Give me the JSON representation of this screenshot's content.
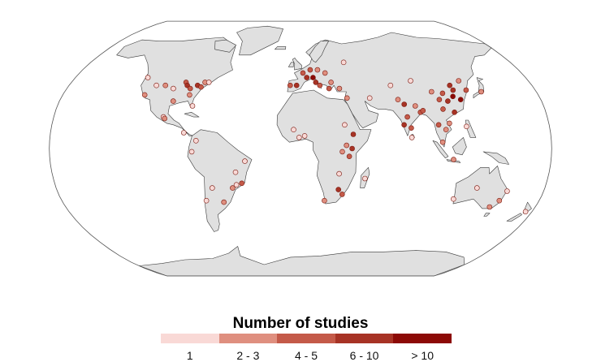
{
  "legend": {
    "title": "Number of studies",
    "bins": [
      {
        "label": "1",
        "color": "#f9d9d6"
      },
      {
        "label": "2 - 3",
        "color": "#df8f7f"
      },
      {
        "label": "4 - 5",
        "color": "#c45a49"
      },
      {
        "label": "6 - 10",
        "color": "#a73325"
      },
      {
        "label": "> 10",
        "color": "#8c0a06"
      }
    ]
  },
  "map": {
    "projection": "robinson",
    "land_color": "#e0e0e0",
    "border_color": "#3a3a3a",
    "ocean_color": "#ffffff"
  },
  "study_sites": [
    {
      "lon": -122,
      "lat": 45,
      "bin": 1
    },
    {
      "lon": -118,
      "lat": 34,
      "bin": 2
    },
    {
      "lon": -112,
      "lat": 40,
      "bin": 1
    },
    {
      "lon": -105,
      "lat": 40,
      "bin": 2
    },
    {
      "lon": -98,
      "lat": 38,
      "bin": 1
    },
    {
      "lon": -95,
      "lat": 30,
      "bin": 2
    },
    {
      "lon": -90,
      "lat": 42,
      "bin": 3
    },
    {
      "lon": -88,
      "lat": 40,
      "bin": 4
    },
    {
      "lon": -85,
      "lat": 38,
      "bin": 3
    },
    {
      "lon": -84,
      "lat": 34,
      "bin": 2
    },
    {
      "lon": -80,
      "lat": 40,
      "bin": 4
    },
    {
      "lon": -77,
      "lat": 39,
      "bin": 3
    },
    {
      "lon": -75,
      "lat": 42,
      "bin": 2
    },
    {
      "lon": -72,
      "lat": 42,
      "bin": 1
    },
    {
      "lon": -80,
      "lat": 27,
      "bin": 1
    },
    {
      "lon": -100,
      "lat": 20,
      "bin": 1
    },
    {
      "lon": -99,
      "lat": 19,
      "bin": 2
    },
    {
      "lon": -84,
      "lat": 10,
      "bin": 1
    },
    {
      "lon": -75,
      "lat": 5,
      "bin": 1
    },
    {
      "lon": -78,
      "lat": -2,
      "bin": 1
    },
    {
      "lon": -47,
      "lat": -15,
      "bin": 1
    },
    {
      "lon": -43,
      "lat": -22,
      "bin": 3
    },
    {
      "lon": -50,
      "lat": -25,
      "bin": 2
    },
    {
      "lon": -47,
      "lat": -23,
      "bin": 1
    },
    {
      "lon": -58,
      "lat": -34,
      "bin": 2
    },
    {
      "lon": -65,
      "lat": -25,
      "bin": 1
    },
    {
      "lon": -71,
      "lat": -33,
      "bin": 1
    },
    {
      "lon": -40,
      "lat": -8,
      "bin": 1
    },
    {
      "lon": -3,
      "lat": 40,
      "bin": 4
    },
    {
      "lon": 2,
      "lat": 48,
      "bin": 3
    },
    {
      "lon": 5,
      "lat": 45,
      "bin": 4
    },
    {
      "lon": 10,
      "lat": 45,
      "bin": 5
    },
    {
      "lon": 12,
      "lat": 42,
      "bin": 4
    },
    {
      "lon": 15,
      "lat": 40,
      "bin": 3
    },
    {
      "lon": 8,
      "lat": 50,
      "bin": 3
    },
    {
      "lon": 14,
      "lat": 50,
      "bin": 2
    },
    {
      "lon": 20,
      "lat": 48,
      "bin": 2
    },
    {
      "lon": 24,
      "lat": 42,
      "bin": 2
    },
    {
      "lon": 22,
      "lat": 38,
      "bin": 3
    },
    {
      "lon": -8,
      "lat": 40,
      "bin": 3
    },
    {
      "lon": 30,
      "lat": 38,
      "bin": 2
    },
    {
      "lon": 35,
      "lat": 32,
      "bin": 2
    },
    {
      "lon": 37,
      "lat": 55,
      "bin": 1
    },
    {
      "lon": 52,
      "lat": 32,
      "bin": 1
    },
    {
      "lon": 32,
      "lat": 15,
      "bin": 1
    },
    {
      "lon": 38,
      "lat": 9,
      "bin": 4
    },
    {
      "lon": 37,
      "lat": 0,
      "bin": 4
    },
    {
      "lon": 35,
      "lat": -5,
      "bin": 3
    },
    {
      "lon": 33,
      "lat": 2,
      "bin": 2
    },
    {
      "lon": 30,
      "lat": -2,
      "bin": 2
    },
    {
      "lon": 3,
      "lat": 8,
      "bin": 1
    },
    {
      "lon": -5,
      "lat": 12,
      "bin": 1
    },
    {
      "lon": -1,
      "lat": 7,
      "bin": 1
    },
    {
      "lon": 28,
      "lat": -26,
      "bin": 4
    },
    {
      "lon": 31,
      "lat": -29,
      "bin": 3
    },
    {
      "lon": 18,
      "lat": -33,
      "bin": 2
    },
    {
      "lon": 47,
      "lat": -19,
      "bin": 1
    },
    {
      "lon": 28,
      "lat": -16,
      "bin": 1
    },
    {
      "lon": 77,
      "lat": 28,
      "bin": 4
    },
    {
      "lon": 78,
      "lat": 20,
      "bin": 3
    },
    {
      "lon": 75,
      "lat": 15,
      "bin": 4
    },
    {
      "lon": 80,
      "lat": 13,
      "bin": 3
    },
    {
      "lon": 73,
      "lat": 31,
      "bin": 2
    },
    {
      "lon": 88,
      "lat": 23,
      "bin": 3
    },
    {
      "lon": 85,
      "lat": 27,
      "bin": 2
    },
    {
      "lon": 90,
      "lat": 24,
      "bin": 3
    },
    {
      "lon": 80,
      "lat": 7,
      "bin": 1
    },
    {
      "lon": 100,
      "lat": 15,
      "bin": 3
    },
    {
      "lon": 105,
      "lat": 12,
      "bin": 2
    },
    {
      "lon": 108,
      "lat": 16,
      "bin": 2
    },
    {
      "lon": 102,
      "lat": 4,
      "bin": 2
    },
    {
      "lon": 110,
      "lat": -7,
      "bin": 2
    },
    {
      "lon": 120,
      "lat": 14,
      "bin": 1
    },
    {
      "lon": 105,
      "lat": 25,
      "bin": 3
    },
    {
      "lon": 110,
      "lat": 30,
      "bin": 4
    },
    {
      "lon": 115,
      "lat": 33,
      "bin": 5
    },
    {
      "lon": 117,
      "lat": 37,
      "bin": 4
    },
    {
      "lon": 120,
      "lat": 31,
      "bin": 5
    },
    {
      "lon": 113,
      "lat": 23,
      "bin": 4
    },
    {
      "lon": 104,
      "lat": 31,
      "bin": 3
    },
    {
      "lon": 108,
      "lat": 35,
      "bin": 3
    },
    {
      "lon": 100,
      "lat": 36,
      "bin": 2
    },
    {
      "lon": 87,
      "lat": 43,
      "bin": 1
    },
    {
      "lon": 125,
      "lat": 43,
      "bin": 2
    },
    {
      "lon": 127,
      "lat": 37,
      "bin": 3
    },
    {
      "lon": 138,
      "lat": 36,
      "bin": 2
    },
    {
      "lon": 116,
      "lat": 40,
      "bin": 4
    },
    {
      "lon": 70,
      "lat": 40,
      "bin": 1
    },
    {
      "lon": 150,
      "lat": -33,
      "bin": 2
    },
    {
      "lon": 145,
      "lat": -37,
      "bin": 2
    },
    {
      "lon": 153,
      "lat": -27,
      "bin": 1
    },
    {
      "lon": 115,
      "lat": -32,
      "bin": 1
    },
    {
      "lon": 130,
      "lat": -25,
      "bin": 1
    },
    {
      "lon": 175,
      "lat": -40,
      "bin": 1
    }
  ]
}
